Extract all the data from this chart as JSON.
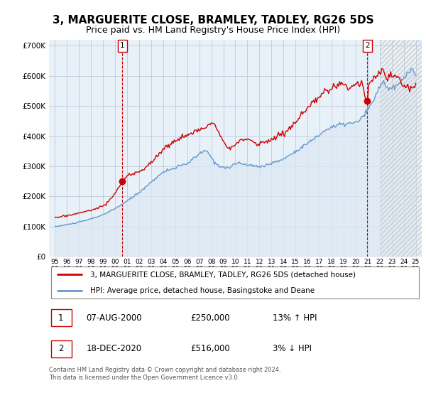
{
  "title": "3, MARGUERITE CLOSE, BRAMLEY, TADLEY, RG26 5DS",
  "subtitle": "Price paid vs. HM Land Registry's House Price Index (HPI)",
  "ylabel_values": [
    "£0",
    "£100K",
    "£200K",
    "£300K",
    "£400K",
    "£500K",
    "£600K",
    "£700K"
  ],
  "ylim": [
    0,
    720000
  ],
  "xlim_start": 1994.5,
  "xlim_end": 2025.5,
  "sale1_date": 2000.6,
  "sale1_price": 250000,
  "sale2_date": 2020.96,
  "sale2_price": 516000,
  "property_color": "#cc0000",
  "hpi_color": "#6699cc",
  "hpi_fill_color": "#ddeeff",
  "marker_box_color": "#cc0000",
  "dashed_line_color": "#cc0000",
  "legend_property": "3, MARGUERITE CLOSE, BRAMLEY, TADLEY, RG26 5DS (detached house)",
  "legend_hpi": "HPI: Average price, detached house, Basingstoke and Deane",
  "annotation1_date": "07-AUG-2000",
  "annotation1_price": "£250,000",
  "annotation1_hpi": "13% ↑ HPI",
  "annotation2_date": "18-DEC-2020",
  "annotation2_price": "£516,000",
  "annotation2_hpi": "3% ↓ HPI",
  "footer": "Contains HM Land Registry data © Crown copyright and database right 2024.\nThis data is licensed under the Open Government Licence v3.0.",
  "background_color": "#ffffff",
  "grid_color": "#bbccdd",
  "title_fontsize": 11,
  "subtitle_fontsize": 9
}
